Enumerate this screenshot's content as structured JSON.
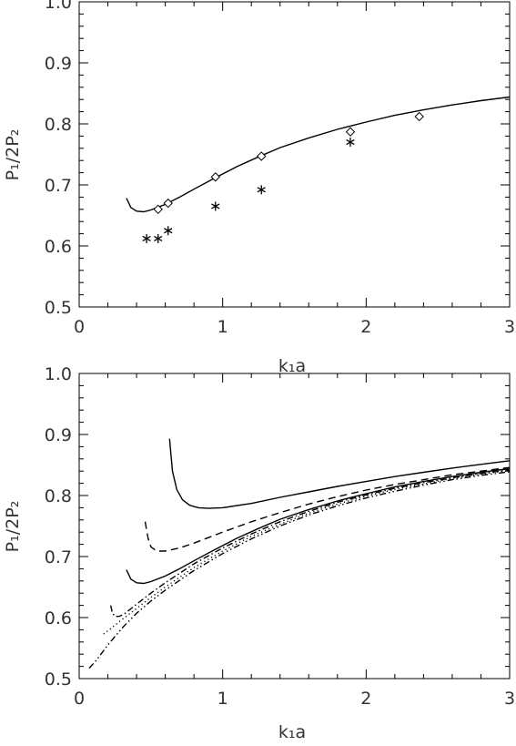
{
  "chart_data": [
    {
      "type": "line",
      "title": "",
      "xlabel": "k₁a",
      "ylabel": "P₁/2P₂",
      "xlim": [
        0,
        3
      ],
      "ylim": [
        0.5,
        1.0
      ],
      "xticks": [
        "0",
        "1",
        "2",
        "3"
      ],
      "yticks": [
        "0.5",
        "0.6",
        "0.7",
        "0.8",
        "0.9",
        "1.0"
      ],
      "grid": false,
      "series": [
        {
          "style": "solid",
          "x": [
            0.33,
            0.36,
            0.4,
            0.45,
            0.5,
            0.6,
            0.7,
            0.8,
            0.95,
            1.1,
            1.25,
            1.4,
            1.6,
            1.8,
            2.0,
            2.2,
            2.4,
            2.6,
            2.8,
            3.0
          ],
          "y": [
            0.678,
            0.663,
            0.657,
            0.656,
            0.659,
            0.668,
            0.68,
            0.693,
            0.712,
            0.73,
            0.746,
            0.761,
            0.777,
            0.791,
            0.803,
            0.814,
            0.823,
            0.831,
            0.838,
            0.844
          ]
        },
        {
          "marker": "diamond",
          "x": [
            0.55,
            0.62,
            0.95,
            1.27,
            1.89,
            2.37
          ],
          "y": [
            0.66,
            0.67,
            0.713,
            0.747,
            0.787,
            0.812
          ]
        },
        {
          "marker": "asterisk",
          "x": [
            0.47,
            0.55,
            0.62,
            0.95,
            1.27,
            1.89
          ],
          "y": [
            0.612,
            0.612,
            0.625,
            0.665,
            0.692,
            0.77
          ]
        }
      ]
    },
    {
      "type": "line",
      "title": "",
      "xlabel": "k₁a",
      "ylabel": "P₁/2P₂",
      "xlim": [
        0,
        3
      ],
      "ylim": [
        0.5,
        1.0
      ],
      "xticks": [
        "0",
        "1",
        "2",
        "3"
      ],
      "yticks": [
        "0.5",
        "0.6",
        "0.7",
        "0.8",
        "0.9",
        "1.0"
      ],
      "grid": false,
      "series": [
        {
          "style": "solid",
          "x": [
            0.63,
            0.65,
            0.68,
            0.72,
            0.77,
            0.83,
            0.9,
            1.0,
            1.2,
            1.4,
            1.6,
            1.8,
            2.0,
            2.2,
            2.4,
            2.6,
            2.8,
            3.0
          ],
          "y": [
            0.893,
            0.84,
            0.81,
            0.793,
            0.784,
            0.78,
            0.779,
            0.78,
            0.787,
            0.797,
            0.806,
            0.815,
            0.823,
            0.831,
            0.838,
            0.845,
            0.851,
            0.857
          ]
        },
        {
          "style": "dashed",
          "x": [
            0.46,
            0.48,
            0.5,
            0.54,
            0.6,
            0.7,
            0.8,
            1.0,
            1.2,
            1.4,
            1.6,
            1.8,
            2.0,
            2.2,
            2.4,
            2.6,
            2.8,
            3.0
          ],
          "y": [
            0.757,
            0.73,
            0.716,
            0.709,
            0.709,
            0.714,
            0.722,
            0.74,
            0.757,
            0.772,
            0.786,
            0.798,
            0.809,
            0.818,
            0.826,
            0.834,
            0.84,
            0.846
          ]
        },
        {
          "style": "solid",
          "x": [
            0.33,
            0.36,
            0.4,
            0.45,
            0.5,
            0.6,
            0.7,
            0.8,
            0.95,
            1.1,
            1.25,
            1.4,
            1.6,
            1.8,
            2.0,
            2.2,
            2.4,
            2.6,
            2.8,
            3.0
          ],
          "y": [
            0.678,
            0.663,
            0.657,
            0.656,
            0.659,
            0.668,
            0.68,
            0.693,
            0.712,
            0.73,
            0.746,
            0.761,
            0.777,
            0.791,
            0.803,
            0.814,
            0.823,
            0.831,
            0.838,
            0.844
          ]
        },
        {
          "style": "dashdot",
          "x": [
            0.22,
            0.23,
            0.25,
            0.28,
            0.32,
            0.4,
            0.5,
            0.6,
            0.8,
            1.0,
            1.2,
            1.4,
            1.6,
            1.8,
            2.0,
            2.2,
            2.4,
            2.6,
            2.8,
            3.0
          ],
          "y": [
            0.62,
            0.608,
            0.602,
            0.602,
            0.607,
            0.622,
            0.64,
            0.657,
            0.688,
            0.714,
            0.737,
            0.757,
            0.774,
            0.789,
            0.801,
            0.812,
            0.821,
            0.829,
            0.836,
            0.842
          ]
        },
        {
          "style": "dotted",
          "x": [
            0.17,
            0.22,
            0.3,
            0.4,
            0.5,
            0.6,
            0.8,
            1.0,
            1.2,
            1.4,
            1.6,
            1.8,
            2.0,
            2.2,
            2.4,
            2.6,
            2.8,
            3.0
          ],
          "y": [
            0.573,
            0.582,
            0.597,
            0.615,
            0.633,
            0.65,
            0.682,
            0.709,
            0.733,
            0.753,
            0.771,
            0.786,
            0.799,
            0.81,
            0.819,
            0.828,
            0.835,
            0.841
          ]
        },
        {
          "style": "dashdotdot",
          "x": [
            0.07,
            0.12,
            0.2,
            0.3,
            0.4,
            0.5,
            0.6,
            0.8,
            1.0,
            1.2,
            1.4,
            1.6,
            1.8,
            2.0,
            2.2,
            2.4,
            2.6,
            2.8,
            3.0
          ],
          "y": [
            0.517,
            0.53,
            0.555,
            0.583,
            0.607,
            0.627,
            0.645,
            0.677,
            0.705,
            0.729,
            0.75,
            0.768,
            0.783,
            0.796,
            0.807,
            0.817,
            0.826,
            0.833,
            0.839
          ]
        }
      ]
    }
  ]
}
